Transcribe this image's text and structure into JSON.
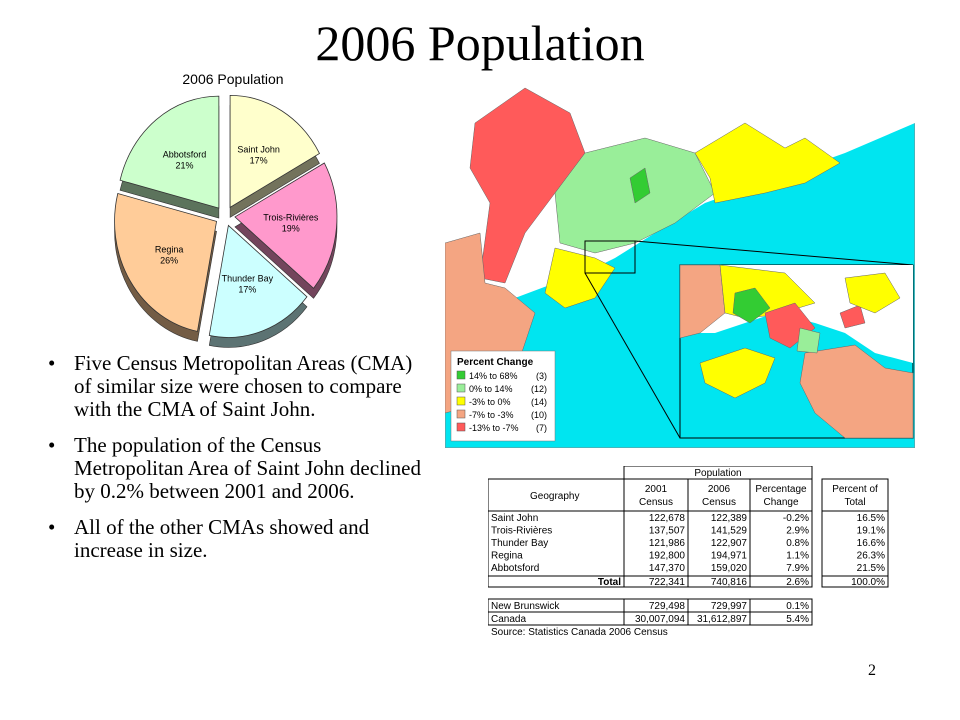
{
  "slide": {
    "title": "2006 Population",
    "page_number": "2"
  },
  "chart_data": {
    "type": "pie",
    "title": "2006 Population",
    "categories": [
      "Saint John",
      "Trois-Rivières",
      "Thunder Bay",
      "Regina",
      "Abbotsford"
    ],
    "values": [
      17,
      19,
      17,
      26,
      21
    ],
    "labels": [
      "17%",
      "19%",
      "17%",
      "26%",
      "21%"
    ],
    "colors": [
      "#ffffcc",
      "#ff99cc",
      "#ccffff",
      "#ffcc99",
      "#ccffcc"
    ],
    "exploded": true,
    "three_d": true
  },
  "map": {
    "legend": {
      "title": "Percent Change",
      "items": [
        {
          "range": "14% to 68%",
          "count": "(3)",
          "color": "#33cc33"
        },
        {
          "range": "0% to 14%",
          "count": "(12)",
          "color": "#99ee99"
        },
        {
          "range": "-3% to 0%",
          "count": "(14)",
          "color": "#ffff00"
        },
        {
          "range": "-7% to -3%",
          "count": "(10)",
          "color": "#f4a582"
        },
        {
          "range": "-13% to -7%",
          "count": "(7)",
          "color": "#ff5a5a"
        }
      ]
    },
    "colors": {
      "water": "#00e5f0",
      "land": "#ffffff"
    }
  },
  "bullets": [
    "Five Census Metropolitan Areas (CMA) of similar size were chosen to compare with the CMA of Saint John.",
    "The population of the Census Metropolitan Area of Saint John declined by 0.2% between 2001 and 2006.",
    "All of the other CMAs showed and increase in size."
  ],
  "table": {
    "group_header": "Population",
    "headers": {
      "geography": "Geography",
      "c2001": [
        "2001",
        "Census"
      ],
      "c2006": [
        "2006",
        "Census"
      ],
      "pct_change": [
        "Percentage",
        "Change"
      ],
      "pct_total": [
        "Percent of",
        "Total"
      ]
    },
    "rows": [
      {
        "geo": "Saint John",
        "c2001": "122,678",
        "c2006": "122,389",
        "change": "-0.2%",
        "total": "16.5%"
      },
      {
        "geo": "Trois-Rivières",
        "c2001": "137,507",
        "c2006": "141,529",
        "change": "2.9%",
        "total": "19.1%"
      },
      {
        "geo": "Thunder Bay",
        "c2001": "121,986",
        "c2006": "122,907",
        "change": "0.8%",
        "total": "16.6%"
      },
      {
        "geo": "Regina",
        "c2001": "192,800",
        "c2006": "194,971",
        "change": "1.1%",
        "total": "26.3%"
      },
      {
        "geo": "Abbotsford",
        "c2001": "147,370",
        "c2006": "159,020",
        "change": "7.9%",
        "total": "21.5%"
      }
    ],
    "total_row": {
      "geo": "Total",
      "c2001": "722,341",
      "c2006": "740,816",
      "change": "2.6%",
      "total": "100.0%"
    },
    "extra_rows": [
      {
        "geo": "New Brunswick",
        "c2001": "729,498",
        "c2006": "729,997",
        "change": "0.1%"
      },
      {
        "geo": "Canada",
        "c2001": "30,007,094",
        "c2006": "31,612,897",
        "change": "5.4%"
      }
    ],
    "source": "Source: Statistics Canada 2006 Census"
  }
}
